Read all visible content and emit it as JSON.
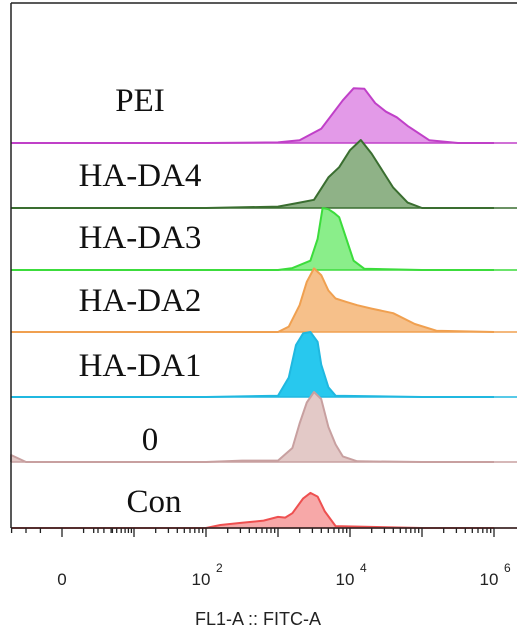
{
  "chart_data": {
    "type": "area",
    "title": "",
    "xlabel": "FL1-A :: FITC-A",
    "ylabel": "",
    "x_scale": "log",
    "x_ticks": [
      {
        "base": "0",
        "exp": ""
      },
      {
        "base": "10",
        "exp": "2"
      },
      {
        "base": "10",
        "exp": "4"
      },
      {
        "base": "10",
        "exp": "6"
      }
    ],
    "grid": false,
    "legend": "none",
    "series": [
      {
        "name": "PEI",
        "color": "#c040c8",
        "fill": "#e39ae8",
        "x": [
          -1,
          0,
          1,
          2,
          3,
          3.3,
          3.6,
          3.9,
          4.05,
          4.2,
          4.35,
          4.5,
          4.65,
          4.8,
          5.1,
          5.5,
          6
        ],
        "y": [
          0,
          0,
          0,
          0,
          0.01,
          0.05,
          0.25,
          0.75,
          0.96,
          0.95,
          0.7,
          0.55,
          0.45,
          0.3,
          0.05,
          0,
          0
        ]
      },
      {
        "name": "HA-DA4",
        "color": "#3a6e30",
        "fill": "#8fb287",
        "x": [
          -1,
          0,
          1,
          2,
          3,
          3.3,
          3.5,
          3.7,
          3.85,
          4.0,
          4.15,
          4.3,
          4.45,
          4.6,
          4.8,
          5.0,
          6
        ],
        "y": [
          0,
          0,
          0,
          0,
          0.02,
          0.08,
          0.12,
          0.45,
          0.6,
          0.85,
          1.0,
          0.8,
          0.55,
          0.3,
          0.08,
          0,
          0
        ]
      },
      {
        "name": "HA-DA3",
        "color": "#3cdc3c",
        "fill": "#8aee8a",
        "x": [
          -1,
          0,
          1,
          2,
          3,
          3.2,
          3.45,
          3.55,
          3.62,
          3.7,
          3.78,
          3.85,
          3.95,
          4.05,
          4.2,
          5,
          6
        ],
        "y": [
          0,
          0,
          0,
          0,
          0,
          0.03,
          0.15,
          0.5,
          1.0,
          0.98,
          0.92,
          0.85,
          0.5,
          0.15,
          0.02,
          0,
          0
        ]
      },
      {
        "name": "HA-DA2",
        "color": "#f0a050",
        "fill": "#f6c08a",
        "x": [
          -1,
          0,
          1,
          2,
          3,
          3.15,
          3.3,
          3.4,
          3.5,
          3.6,
          3.7,
          3.8,
          3.95,
          4.1,
          4.3,
          4.6,
          4.9,
          5.2,
          6
        ],
        "y": [
          0,
          0,
          0,
          0,
          0,
          0.08,
          0.4,
          0.75,
          0.95,
          0.85,
          0.62,
          0.5,
          0.45,
          0.4,
          0.35,
          0.28,
          0.12,
          0.02,
          0
        ]
      },
      {
        "name": "HA-DA1",
        "color": "#20b8e0",
        "fill": "#28c8ee",
        "x": [
          -1,
          0,
          1,
          2,
          3,
          3.15,
          3.25,
          3.35,
          3.45,
          3.55,
          3.6,
          3.7,
          3.8,
          5,
          6
        ],
        "y": [
          0,
          0,
          0,
          0,
          0.02,
          0.3,
          0.8,
          0.98,
          1.0,
          0.85,
          0.5,
          0.15,
          0.02,
          0,
          0
        ]
      },
      {
        "name": "0",
        "color": "#c8a0a0",
        "fill": "#e3c9c7",
        "x": [
          -1,
          -0.8,
          -0.5,
          0,
          1,
          2,
          2.5,
          3,
          3.2,
          3.3,
          3.4,
          3.5,
          3.6,
          3.7,
          3.8,
          3.9,
          4.1,
          5,
          6
        ],
        "y": [
          0,
          0.1,
          0,
          0,
          0,
          0,
          0.02,
          0.02,
          0.2,
          0.55,
          0.85,
          1.0,
          0.9,
          0.5,
          0.25,
          0.08,
          0.01,
          0,
          0
        ]
      },
      {
        "name": "Con",
        "color": "#ee5050",
        "fill": "#f7a8a8",
        "x": [
          -1,
          0,
          1,
          2,
          2.2,
          2.5,
          2.8,
          3.0,
          3.1,
          3.2,
          3.35,
          3.45,
          3.55,
          3.65,
          3.8,
          5,
          6
        ],
        "y": [
          0,
          0,
          0,
          0,
          0.08,
          0.14,
          0.2,
          0.3,
          0.28,
          0.4,
          0.8,
          0.95,
          0.85,
          0.45,
          0.05,
          0,
          0
        ]
      }
    ]
  }
}
